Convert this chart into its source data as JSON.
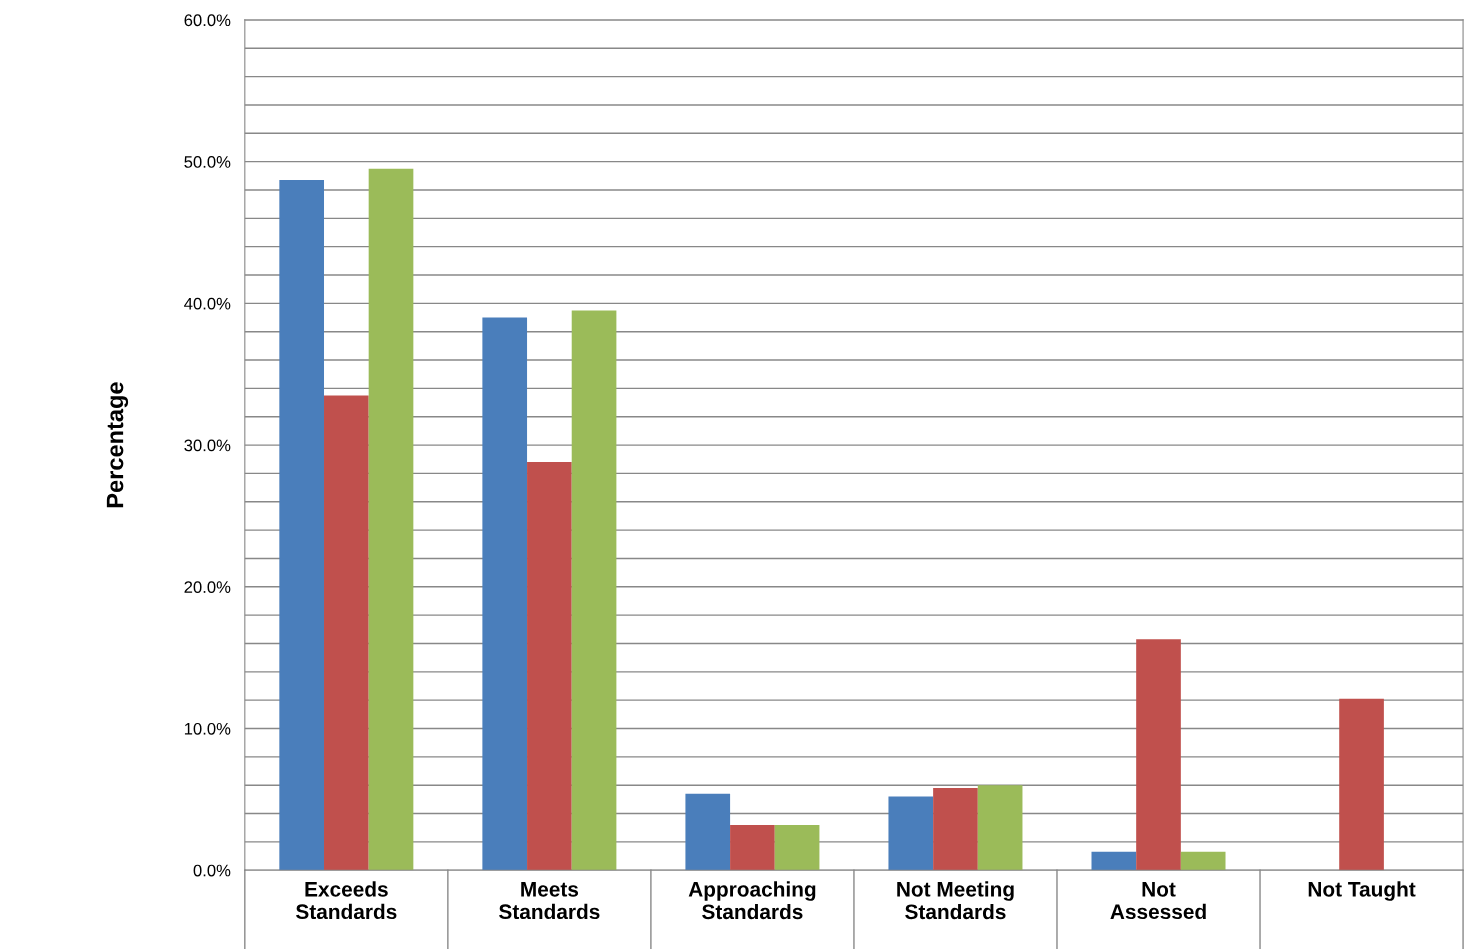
{
  "chart_data": {
    "type": "bar",
    "ylabel": "Percentage",
    "categories": [
      "Exceeds\nStandards",
      "Meets\nStandards",
      "Approaching\nStandards",
      "Not Meeting\nStandards",
      "Not\nAssessed",
      "Not Taught"
    ],
    "series": [
      {
        "color": "#4a7ebb",
        "values": [
          48.7,
          39.0,
          5.4,
          5.2,
          1.3,
          null
        ]
      },
      {
        "color": "#c0504d",
        "values": [
          33.5,
          28.8,
          3.2,
          5.8,
          16.3,
          12.1
        ]
      },
      {
        "color": "#9bbb59",
        "values": [
          49.5,
          39.5,
          3.2,
          6.0,
          1.3,
          null
        ]
      }
    ],
    "ylim": [
      0,
      60
    ],
    "yticks": [
      {
        "value": 0,
        "label": "0.0%"
      },
      {
        "value": 2,
        "label": null
      },
      {
        "value": 4,
        "label": null
      },
      {
        "value": 6,
        "label": null
      },
      {
        "value": 8,
        "label": null
      },
      {
        "value": 10,
        "label": "10.0%"
      },
      {
        "value": 12,
        "label": null
      },
      {
        "value": 14,
        "label": null
      },
      {
        "value": 16,
        "label": null
      },
      {
        "value": 18,
        "label": null
      },
      {
        "value": 20,
        "label": "20.0%"
      },
      {
        "value": 22,
        "label": null
      },
      {
        "value": 24,
        "label": null
      },
      {
        "value": 26,
        "label": null
      },
      {
        "value": 28,
        "label": null
      },
      {
        "value": 30,
        "label": "30.0%"
      },
      {
        "value": 32,
        "label": null
      },
      {
        "value": 34,
        "label": null
      },
      {
        "value": 36,
        "label": null
      },
      {
        "value": 38,
        "label": null
      },
      {
        "value": 40,
        "label": "40.0%"
      },
      {
        "value": 42,
        "label": null
      },
      {
        "value": 44,
        "label": null
      },
      {
        "value": 46,
        "label": null
      },
      {
        "value": 48,
        "label": null
      },
      {
        "value": 50,
        "label": "50.0%"
      },
      {
        "value": 52,
        "label": null
      },
      {
        "value": 54,
        "label": null
      },
      {
        "value": 56,
        "label": null
      },
      {
        "value": 58,
        "label": null
      },
      {
        "value": 60,
        "label": "60.0%"
      }
    ],
    "grid": "y",
    "legend": false
  }
}
